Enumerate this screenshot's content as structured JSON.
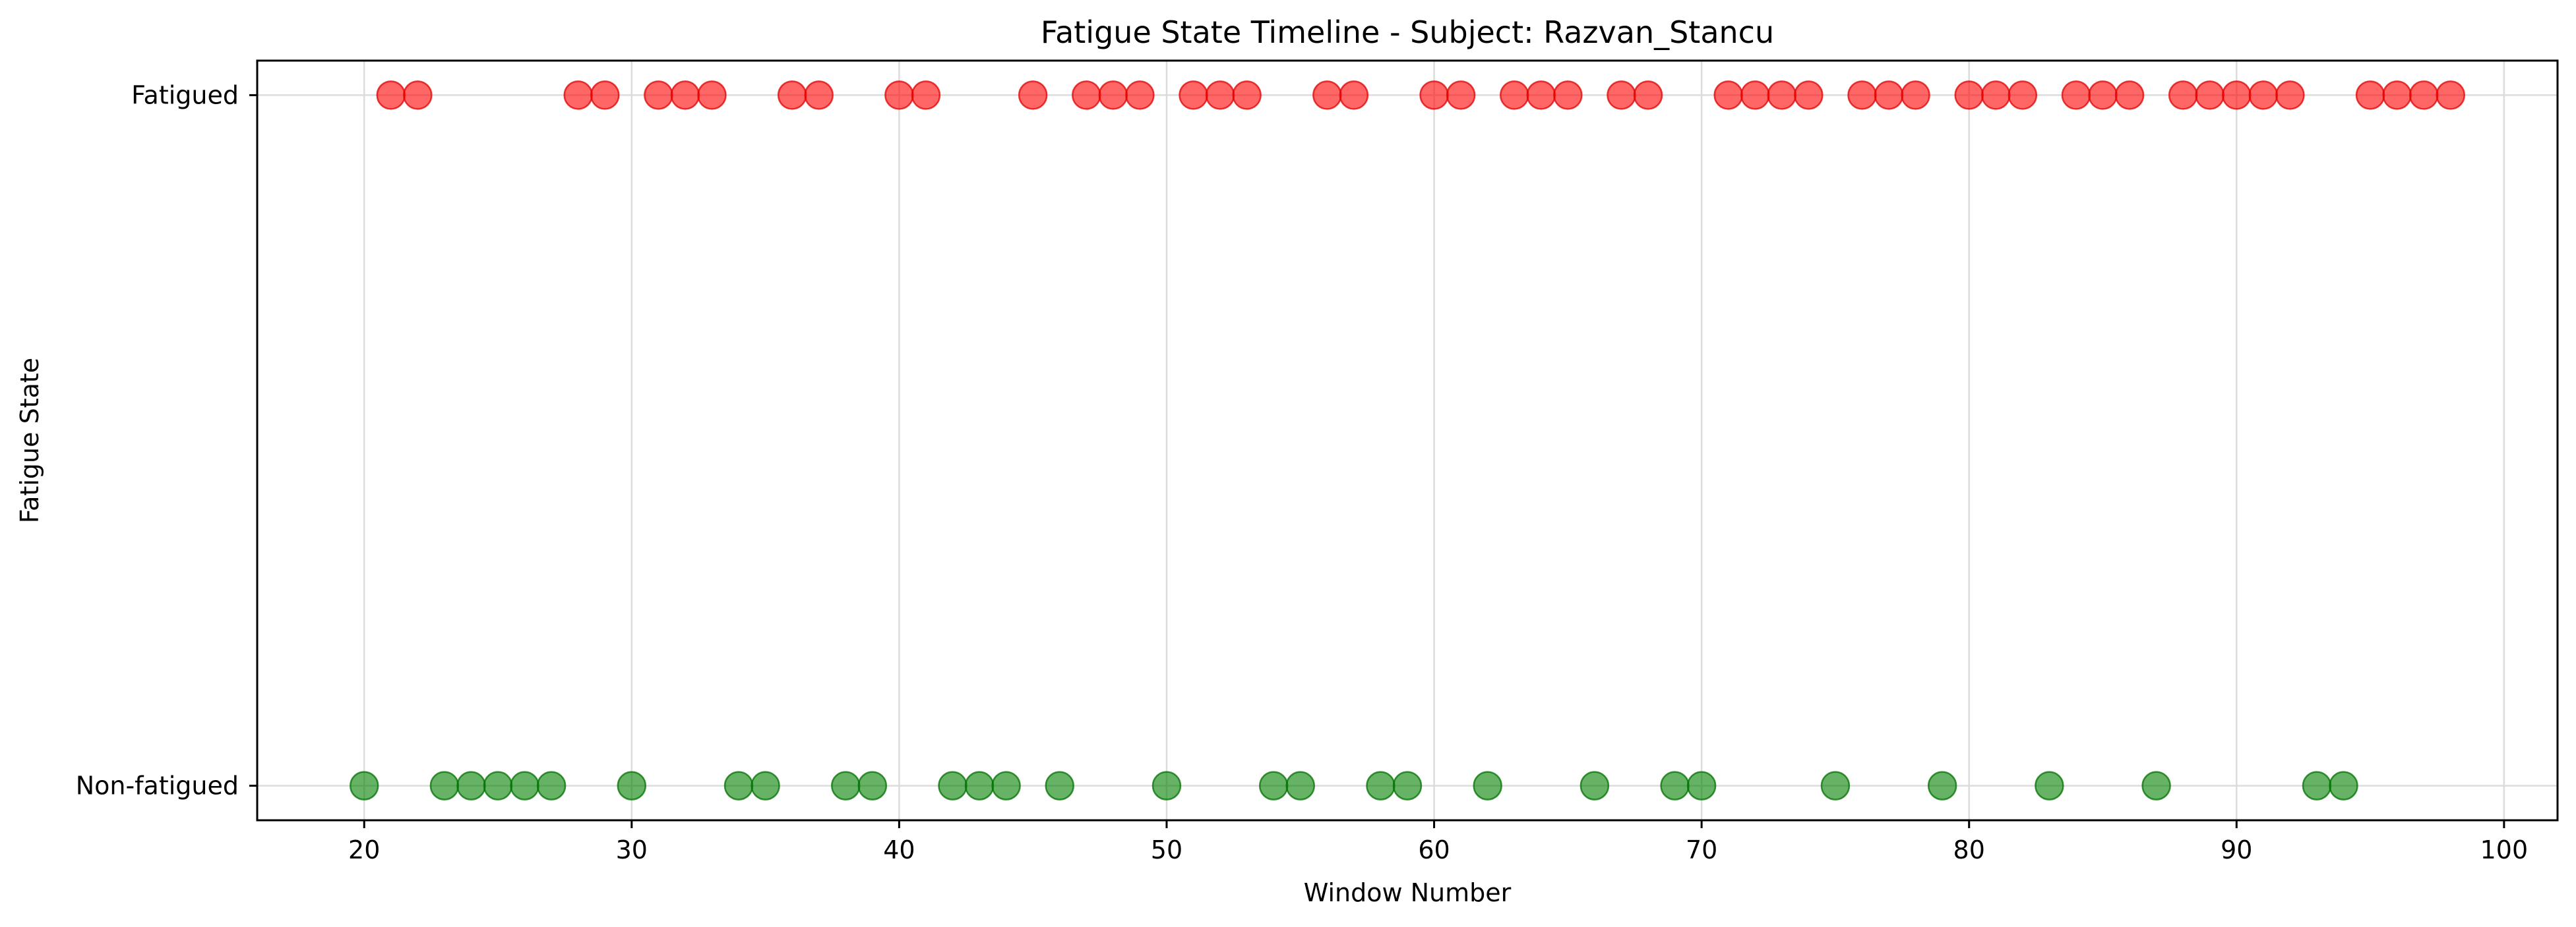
{
  "chart_data": {
    "type": "scatter",
    "title": "Fatigue State Timeline - Subject: Razvan_Stancu",
    "xlabel": "Window Number",
    "ylabel": "Fatigue State",
    "xlim": [
      16,
      102
    ],
    "ylim": [
      -0.05,
      1.05
    ],
    "x_ticks": [
      20,
      30,
      40,
      50,
      60,
      70,
      80,
      90,
      100
    ],
    "y_ticks": [
      0,
      1
    ],
    "y_tick_labels": [
      "Non-fatigued",
      "Fatigued"
    ],
    "grid": true,
    "series": [
      {
        "color": "#ff0000",
        "edge_color": "#e00000",
        "alpha": 0.6,
        "y": 1,
        "x": [
          21,
          22,
          28,
          29,
          31,
          32,
          33,
          36,
          37,
          40,
          41,
          45,
          47,
          48,
          49,
          51,
          52,
          53,
          56,
          57,
          60,
          61,
          63,
          64,
          65,
          67,
          68,
          71,
          72,
          73,
          74,
          76,
          77,
          78,
          80,
          81,
          82,
          84,
          85,
          86,
          88,
          89,
          90,
          91,
          92,
          95,
          96,
          97,
          98
        ]
      },
      {
        "color": "#008000",
        "edge_color": "#007000",
        "alpha": 0.6,
        "y": 0,
        "x": [
          20,
          23,
          24,
          25,
          26,
          27,
          30,
          34,
          35,
          38,
          39,
          42,
          43,
          44,
          46,
          50,
          54,
          55,
          58,
          59,
          62,
          66,
          69,
          70,
          75,
          79,
          83,
          87,
          93,
          94
        ]
      }
    ]
  }
}
